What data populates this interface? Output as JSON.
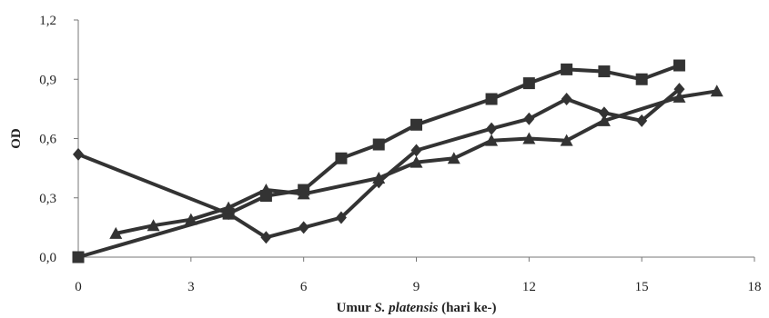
{
  "chart_data": {
    "type": "line",
    "title": "",
    "xlabel": {
      "prefix": "Umur ",
      "italic": "S. platensis",
      "suffix": " (hari ke-)"
    },
    "ylabel": "OD",
    "xlim": [
      0,
      18
    ],
    "ylim": [
      0,
      1.2
    ],
    "x_ticks": [
      "0",
      "3",
      "6",
      "9",
      "12",
      "15",
      "18"
    ],
    "y_ticks": [
      "0,0",
      "0,3",
      "0,6",
      "0,9",
      "1,2"
    ],
    "grid": false,
    "legend": "none",
    "series": [
      {
        "marker": "square",
        "color": "#333333",
        "x": [
          0,
          4,
          5,
          6,
          7,
          8,
          9,
          11,
          12,
          13,
          14,
          15,
          16
        ],
        "y": [
          0.0,
          0.22,
          0.31,
          0.34,
          0.5,
          0.57,
          0.67,
          0.8,
          0.88,
          0.95,
          0.94,
          0.9,
          0.97
        ]
      },
      {
        "marker": "diamond",
        "color": "#333333",
        "x": [
          0,
          4,
          5,
          6,
          7,
          8,
          9,
          11,
          12,
          13,
          14,
          15,
          16
        ],
        "y": [
          0.52,
          0.22,
          0.1,
          0.15,
          0.2,
          0.38,
          0.54,
          0.65,
          0.7,
          0.8,
          0.73,
          0.69,
          0.85
        ]
      },
      {
        "marker": "triangle",
        "color": "#333333",
        "x": [
          1,
          2,
          3,
          4,
          5,
          6,
          8,
          9,
          10,
          11,
          12,
          13,
          14,
          16,
          17
        ],
        "y": [
          0.12,
          0.16,
          0.19,
          0.25,
          0.34,
          0.32,
          0.4,
          0.48,
          0.5,
          0.59,
          0.6,
          0.59,
          0.69,
          0.81,
          0.84
        ]
      }
    ]
  }
}
